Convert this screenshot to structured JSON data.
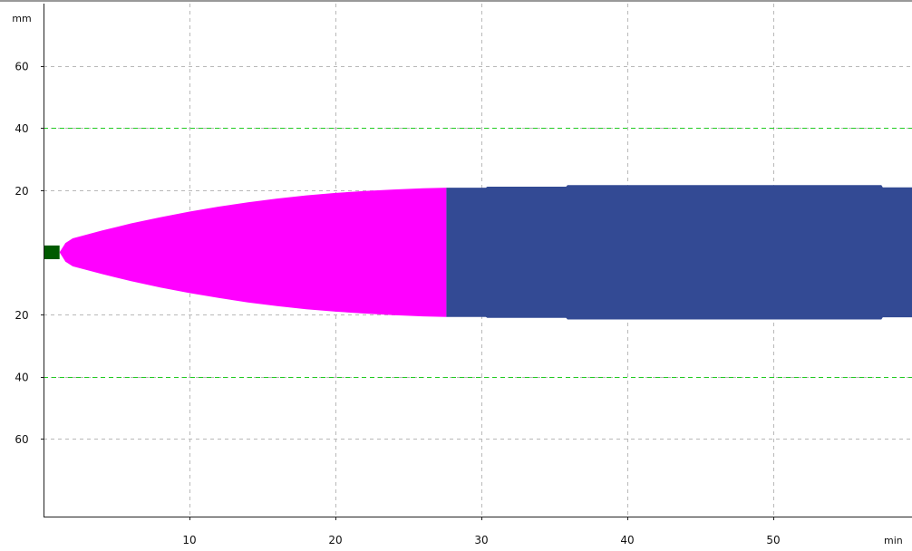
{
  "chart_data": {
    "type": "area",
    "title": "",
    "xlabel": "min",
    "ylabel": "mm",
    "xlim": [
      0,
      59.5
    ],
    "ylim": [
      -85,
      80
    ],
    "grid": true,
    "x_ticks": [
      10,
      20,
      30,
      40,
      50
    ],
    "x_tick_labels": [
      "10",
      "20",
      "30",
      "40",
      "50"
    ],
    "y_ticks": [
      60,
      40,
      20,
      -20,
      -40,
      -60
    ],
    "y_tick_labels": [
      "60",
      "40",
      "20",
      "20",
      "40",
      "60"
    ],
    "reference_lines": [
      {
        "y": 40,
        "color": "#22cc22",
        "style": "dashed"
      },
      {
        "y": -40,
        "color": "#22cc22",
        "style": "dashed"
      }
    ],
    "series": [
      {
        "color": "#005a00",
        "x": [
          0,
          1.1
        ],
        "upper": [
          2.2,
          2.2
        ],
        "lower": [
          -2.2,
          -2.2
        ]
      },
      {
        "color": "#ff00ff",
        "x": [
          1.1,
          1.5,
          2,
          4,
          6,
          8,
          10,
          12,
          14,
          16,
          18,
          20,
          22,
          24,
          26,
          27.6
        ],
        "upper": [
          0,
          3,
          4.5,
          7,
          9.3,
          11.3,
          13.1,
          14.7,
          16.1,
          17.3,
          18.3,
          19.1,
          19.7,
          20.2,
          20.6,
          20.8
        ],
        "lower": [
          0,
          -3,
          -4.5,
          -7,
          -9.3,
          -11.3,
          -13.1,
          -14.7,
          -16.1,
          -17.3,
          -18.3,
          -19.1,
          -19.7,
          -20.2,
          -20.6,
          -20.8
        ]
      },
      {
        "color": "#334a94",
        "x": [
          27.6,
          30.3,
          30.4,
          35.8,
          35.9,
          57.4,
          57.5,
          59.5
        ],
        "upper": [
          20.8,
          20.8,
          21.1,
          21.1,
          21.6,
          21.6,
          20.9,
          20.9
        ],
        "lower": [
          -20.8,
          -20.8,
          -21.1,
          -21.1,
          -21.6,
          -21.6,
          -20.9,
          -20.9
        ]
      }
    ]
  }
}
